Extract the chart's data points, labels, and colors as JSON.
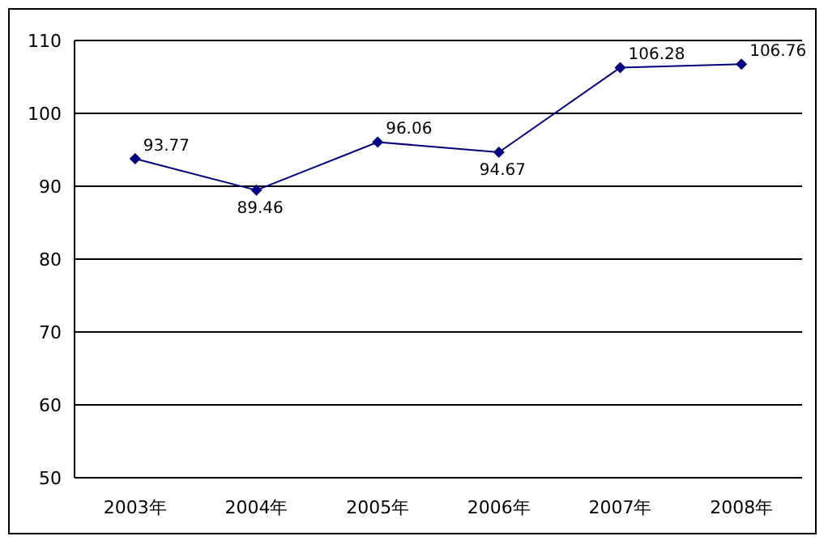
{
  "chart_data": {
    "type": "line",
    "categories": [
      "2003年",
      "2004年",
      "2005年",
      "2006年",
      "2007年",
      "2008年"
    ],
    "series": [
      {
        "color": "#000080",
        "values": [
          93.77,
          89.46,
          96.06,
          94.67,
          106.28,
          106.76
        ]
      }
    ],
    "ylim": [
      50,
      110
    ],
    "yticks": [
      50,
      60,
      70,
      80,
      90,
      100,
      110
    ],
    "grid": "y",
    "marker": "diamond",
    "line_style": "solid",
    "data_labels": true,
    "legend": false
  }
}
